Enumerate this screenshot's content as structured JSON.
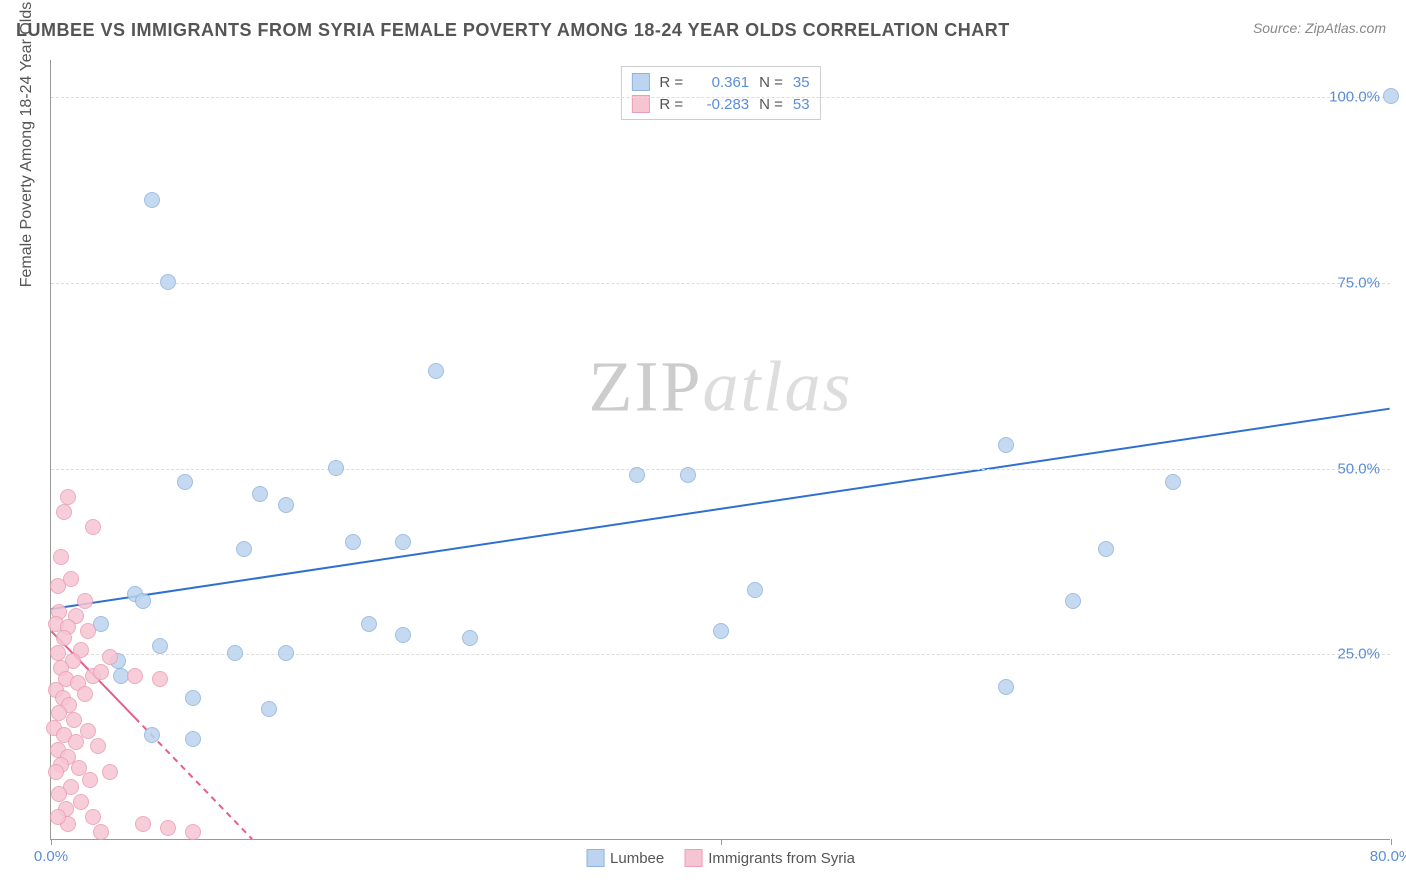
{
  "title": "LUMBEE VS IMMIGRANTS FROM SYRIA FEMALE POVERTY AMONG 18-24 YEAR OLDS CORRELATION CHART",
  "source": "Source: ZipAtlas.com",
  "y_axis_label": "Female Poverty Among 18-24 Year Olds",
  "watermark": {
    "part1": "ZIP",
    "part2": "atlas"
  },
  "chart": {
    "type": "scatter",
    "xlim": [
      0,
      80
    ],
    "ylim": [
      0,
      105
    ],
    "x_ticks": [
      0,
      40,
      80
    ],
    "x_tick_labels": [
      "0.0%",
      "",
      "80.0%"
    ],
    "y_ticks": [
      25,
      50,
      75,
      100
    ],
    "y_tick_labels": [
      "25.0%",
      "50.0%",
      "75.0%",
      "100.0%"
    ],
    "background_color": "#ffffff",
    "grid_color": "#dddddd",
    "axis_color": "#999999",
    "tick_label_color": "#5b8dd6",
    "marker_radius": 8,
    "series": [
      {
        "name": "Lumbee",
        "color_fill": "#bcd4ef",
        "color_stroke": "#8fb4dd",
        "r_value": "0.361",
        "n_value": "35",
        "trend": {
          "x1": 0,
          "y1": 31,
          "x2": 80,
          "y2": 58,
          "color": "#2f6fd0",
          "width": 2,
          "dash_from_x": null
        },
        "points": [
          [
            80,
            100
          ],
          [
            6,
            86
          ],
          [
            7,
            75
          ],
          [
            23,
            63
          ],
          [
            38,
            49
          ],
          [
            17,
            50
          ],
          [
            8,
            48
          ],
          [
            12.5,
            46.5
          ],
          [
            14,
            45
          ],
          [
            11.5,
            39
          ],
          [
            18,
            40
          ],
          [
            21,
            40
          ],
          [
            25,
            27
          ],
          [
            19,
            29
          ],
          [
            35,
            49
          ],
          [
            57,
            53
          ],
          [
            67,
            48
          ],
          [
            63,
            39
          ],
          [
            61,
            32
          ],
          [
            57,
            20.5
          ],
          [
            42,
            33.5
          ],
          [
            40,
            28
          ],
          [
            11,
            25
          ],
          [
            14,
            25
          ],
          [
            13,
            17.5
          ],
          [
            8.5,
            19
          ],
          [
            5,
            33
          ],
          [
            5.5,
            32
          ],
          [
            4,
            24
          ],
          [
            4.2,
            22
          ],
          [
            6,
            14
          ],
          [
            3,
            29
          ],
          [
            21,
            27.5
          ],
          [
            6.5,
            26
          ],
          [
            8.5,
            13.5
          ]
        ]
      },
      {
        "name": "Immigrants from Syria",
        "color_fill": "#f6c5d4",
        "color_stroke": "#eb9db5",
        "r_value": "-0.283",
        "n_value": "53",
        "trend": {
          "x1": 0,
          "y1": 28,
          "x2": 12,
          "y2": 0,
          "color": "#e75d8b",
          "width": 2,
          "dash_from_x": 5
        },
        "points": [
          [
            1,
            46
          ],
          [
            0.8,
            44
          ],
          [
            2.5,
            42
          ],
          [
            0.6,
            38
          ],
          [
            1.2,
            35
          ],
          [
            0.4,
            34
          ],
          [
            2,
            32
          ],
          [
            1.5,
            30
          ],
          [
            0.5,
            30.5
          ],
          [
            0.3,
            29
          ],
          [
            1,
            28.5
          ],
          [
            2.2,
            28
          ],
          [
            0.8,
            27
          ],
          [
            1.8,
            25.5
          ],
          [
            0.4,
            25
          ],
          [
            1.3,
            24
          ],
          [
            3.5,
            24.5
          ],
          [
            0.6,
            23
          ],
          [
            2.5,
            22
          ],
          [
            0.9,
            21.5
          ],
          [
            1.6,
            21
          ],
          [
            0.3,
            20
          ],
          [
            2,
            19.5
          ],
          [
            0.7,
            19
          ],
          [
            1.1,
            18
          ],
          [
            0.5,
            17
          ],
          [
            3,
            22.5
          ],
          [
            5,
            22
          ],
          [
            6.5,
            21.5
          ],
          [
            1.4,
            16
          ],
          [
            0.2,
            15
          ],
          [
            2.2,
            14.5
          ],
          [
            0.8,
            14
          ],
          [
            1.5,
            13
          ],
          [
            0.4,
            12
          ],
          [
            2.8,
            12.5
          ],
          [
            1,
            11
          ],
          [
            0.6,
            10
          ],
          [
            1.7,
            9.5
          ],
          [
            0.3,
            9
          ],
          [
            2.3,
            8
          ],
          [
            1.2,
            7
          ],
          [
            3.5,
            9
          ],
          [
            0.5,
            6
          ],
          [
            1.8,
            5
          ],
          [
            0.9,
            4
          ],
          [
            2.5,
            3
          ],
          [
            5.5,
            2
          ],
          [
            7,
            1.5
          ],
          [
            8.5,
            1
          ],
          [
            1,
            2
          ],
          [
            3,
            1
          ],
          [
            0.4,
            3
          ]
        ]
      }
    ]
  },
  "legend_top": {
    "rows": [
      {
        "swatch_fill": "#bcd4ef",
        "swatch_stroke": "#8fb4dd",
        "r": "0.361",
        "n": "35"
      },
      {
        "swatch_fill": "#f6c5d4",
        "swatch_stroke": "#eb9db5",
        "r": "-0.283",
        "n": "53"
      }
    ],
    "r_label": "R =",
    "n_label": "N ="
  },
  "legend_bottom": {
    "items": [
      {
        "label": "Lumbee",
        "swatch_fill": "#bcd4ef",
        "swatch_stroke": "#8fb4dd"
      },
      {
        "label": "Immigrants from Syria",
        "swatch_fill": "#f6c5d4",
        "swatch_stroke": "#eb9db5"
      }
    ]
  }
}
